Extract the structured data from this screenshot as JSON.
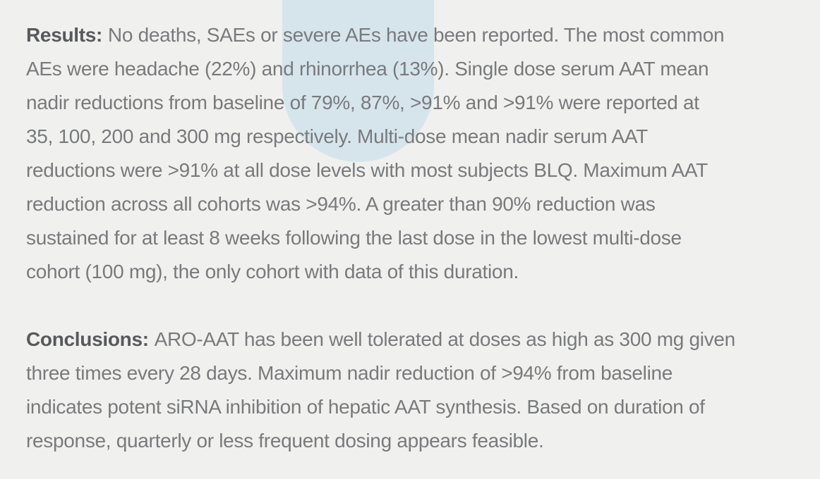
{
  "page": {
    "background_color": "#f0f0ee",
    "accent_shape_color": "#d6e5ec",
    "body_text_color": "#797a7d",
    "label_text_color": "#58595d"
  },
  "abstract": {
    "results": {
      "label": "Results:",
      "lines": [
        "No deaths, SAEs or severe AEs have been reported. The most common",
        "AEs were headache (22%) and rhinorrhea (13%). Single dose serum AAT mean",
        "nadir reductions from baseline of 79%, 87%, >91% and >91% were reported at",
        "35, 100, 200 and 300 mg respectively. Multi-dose mean nadir serum AAT",
        "reductions were >91% at all dose levels with most subjects BLQ. Maximum AAT",
        "reduction across all cohorts was >94%. A greater than 90% reduction was",
        "sustained for at least 8 weeks following the last dose in the lowest multi-dose",
        "cohort (100 mg), the only cohort with data of this duration."
      ]
    },
    "conclusions": {
      "label": "Conclusions:",
      "lines": [
        "ARO-AAT has been well tolerated at doses as high as 300 mg given",
        "three times every 28 days. Maximum nadir reduction of >94% from baseline",
        "indicates potent siRNA inhibition of hepatic AAT synthesis. Based on duration of",
        "response, quarterly or less frequent dosing appears feasible."
      ]
    }
  }
}
